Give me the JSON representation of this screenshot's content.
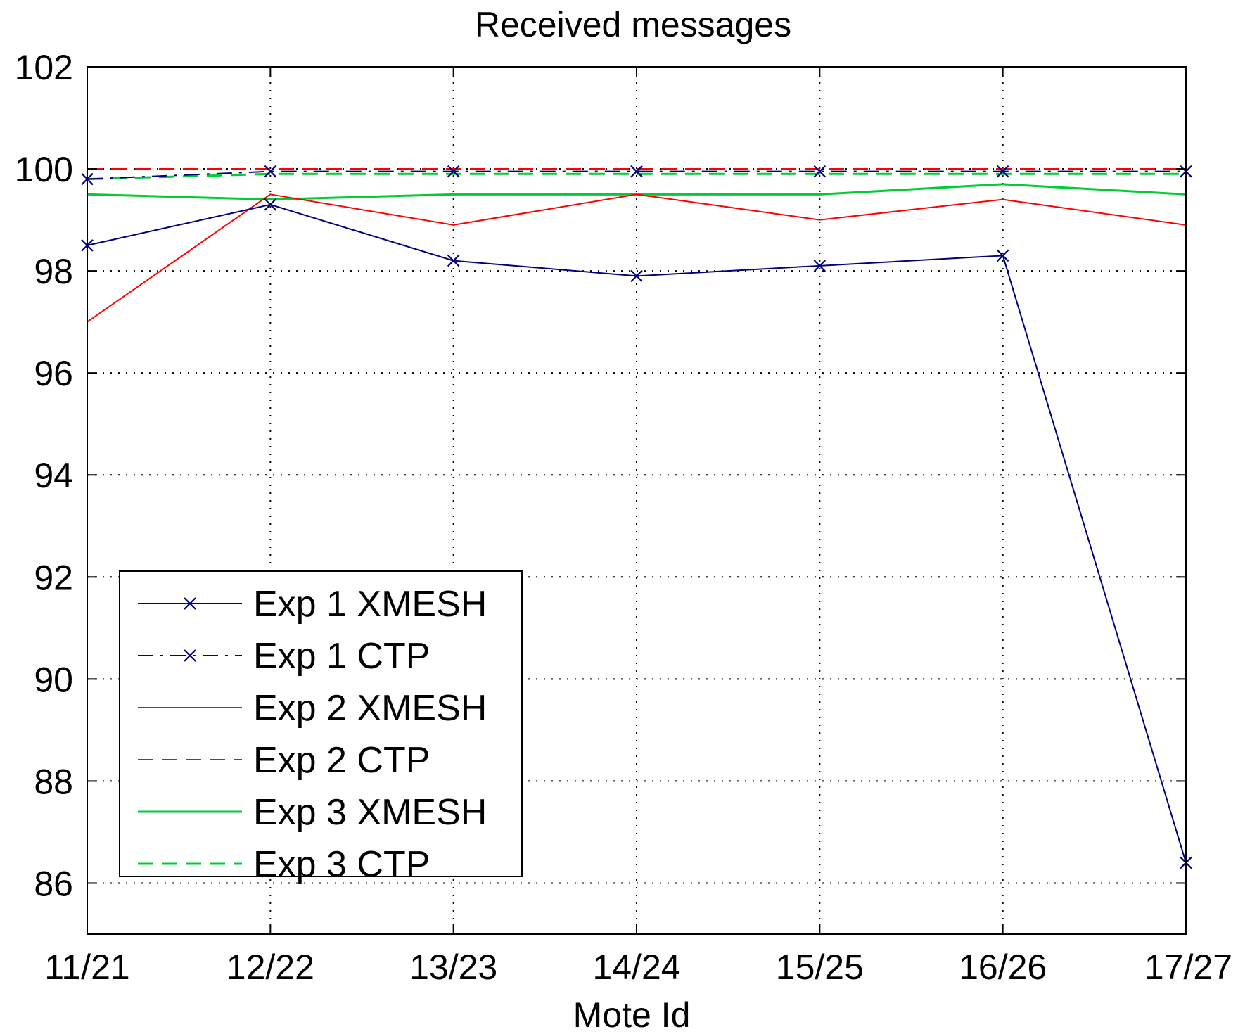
{
  "chart_data": {
    "type": "line",
    "title": "Received messages",
    "xlabel": "Mote Id",
    "ylabel": "",
    "categories": [
      "11/21",
      "12/22",
      "13/23",
      "14/24",
      "15/25",
      "16/26",
      "17/27"
    ],
    "ylim": [
      85,
      102
    ],
    "yticks": [
      86,
      88,
      90,
      92,
      94,
      96,
      98,
      100,
      102
    ],
    "grid": true,
    "legend_position": "bottom-left",
    "series": [
      {
        "name": "Exp 1 XMESH",
        "color": "#00007f",
        "line_style": "solid",
        "marker": "x",
        "values": [
          98.5,
          99.3,
          98.2,
          97.9,
          98.1,
          98.3,
          86.4
        ]
      },
      {
        "name": "Exp 1 CTP",
        "color": "#00007f",
        "line_style": "dash-dot",
        "marker": "x",
        "values": [
          99.8,
          99.95,
          99.95,
          99.95,
          99.95,
          99.95,
          99.95
        ]
      },
      {
        "name": "Exp 2 XMESH",
        "color": "#ff0000",
        "line_style": "solid",
        "marker": "none",
        "values": [
          97.0,
          99.5,
          98.9,
          99.5,
          99.0,
          99.4,
          98.9
        ]
      },
      {
        "name": "Exp 2 CTP",
        "color": "#ff0000",
        "line_style": "dashed",
        "marker": "none",
        "values": [
          100,
          100,
          100,
          100,
          100,
          100,
          100
        ]
      },
      {
        "name": "Exp 3 XMESH",
        "color": "#00cc33",
        "line_style": "solid",
        "marker": "none",
        "values": [
          99.5,
          99.4,
          99.5,
          99.5,
          99.5,
          99.7,
          99.5
        ]
      },
      {
        "name": "Exp 3 CTP",
        "color": "#00cc33",
        "line_style": "dashed",
        "marker": "none",
        "values": [
          99.8,
          99.9,
          99.9,
          99.9,
          99.9,
          99.9,
          99.9
        ]
      }
    ]
  }
}
